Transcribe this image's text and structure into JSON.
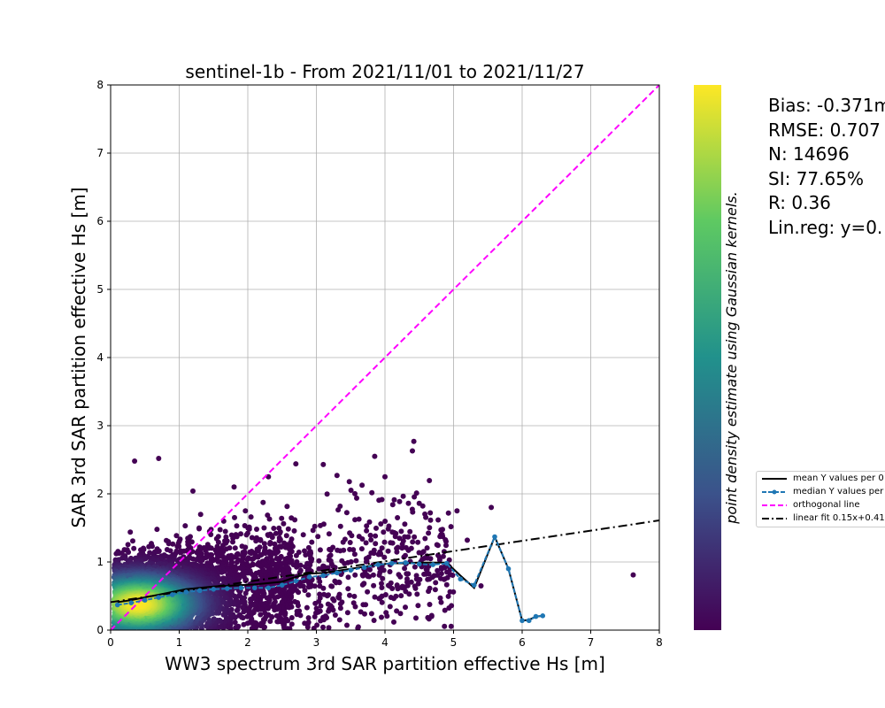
{
  "chart_data": {
    "type": "scatter",
    "title": "sentinel-1b - From 2021/11/01 to 2021/11/27",
    "xlabel": "WW3 spectrum 3rd SAR partition effective Hs [m]",
    "ylabel": "SAR 3rd SAR partition effective Hs [m]",
    "xlim": [
      0,
      8
    ],
    "ylim": [
      0,
      8
    ],
    "xticks": [
      "0",
      "1",
      "2",
      "3",
      "4",
      "5",
      "6",
      "7",
      "8"
    ],
    "yticks": [
      "0",
      "1",
      "2",
      "3",
      "4",
      "5",
      "6",
      "7",
      "8"
    ],
    "grid": true,
    "colorbar_label": "point density estimate using Gaussian kernels.",
    "colormap": [
      "#440154",
      "#3b528b",
      "#21918c",
      "#5ec962",
      "#fde725"
    ],
    "stats": [
      "Bias: -0.371m",
      "RMSE: 0.707",
      "N: 14696",
      "SI: 77.65%",
      "R: 0.36",
      "Lin.reg: y=0."
    ],
    "legend": {
      "placement": "right",
      "entries": [
        "mean Y values per 0",
        "median Y values per",
        "orthogonal line",
        "linear fit 0.15x+0.41"
      ]
    },
    "series": [
      {
        "name": "mean Y values per 0",
        "color": "#000000",
        "x": [
          0.1,
          0.3,
          0.5,
          0.7,
          0.9,
          1.1,
          1.3,
          1.5,
          1.7,
          1.9,
          2.1,
          2.3,
          2.5,
          2.7,
          2.9,
          3.1,
          3.3,
          3.5,
          3.7,
          3.9,
          4.1,
          4.3,
          4.5,
          4.7,
          4.9,
          5.1,
          5.3,
          5.6,
          5.8,
          6.0,
          6.1,
          6.2,
          6.3
        ],
        "y": [
          0.41,
          0.44,
          0.48,
          0.52,
          0.56,
          0.6,
          0.62,
          0.64,
          0.65,
          0.66,
          0.67,
          0.69,
          0.71,
          0.78,
          0.83,
          0.84,
          0.87,
          0.9,
          0.93,
          0.96,
          0.98,
          0.98,
          0.99,
          0.99,
          0.99,
          0.8,
          0.62,
          1.37,
          0.9,
          0.14,
          0.15,
          0.2,
          0.21
        ]
      },
      {
        "name": "median Y values per",
        "color": "#1f77b4",
        "x": [
          0.1,
          0.3,
          0.5,
          0.7,
          0.9,
          1.1,
          1.3,
          1.5,
          1.7,
          1.9,
          2.1,
          2.3,
          2.5,
          2.7,
          2.9,
          3.1,
          3.3,
          3.5,
          3.7,
          3.9,
          4.1,
          4.3,
          4.5,
          4.7,
          4.9,
          5.1,
          5.3,
          5.6,
          5.8,
          6.0,
          6.1,
          6.2,
          6.3
        ],
        "y": [
          0.37,
          0.4,
          0.44,
          0.48,
          0.52,
          0.56,
          0.58,
          0.6,
          0.61,
          0.62,
          0.62,
          0.62,
          0.66,
          0.72,
          0.78,
          0.8,
          0.84,
          0.88,
          0.92,
          0.96,
          0.98,
          0.99,
          0.97,
          0.96,
          0.98,
          0.75,
          0.66,
          1.37,
          0.9,
          0.14,
          0.14,
          0.2,
          0.21
        ]
      }
    ],
    "orthogonal_line": {
      "name": "orthogonal line",
      "color": "#ff00ff",
      "x": [
        0,
        8
      ],
      "y": [
        0,
        8
      ]
    },
    "linear_fit": {
      "name": "linear fit 0.15x+0.41",
      "color": "#000000",
      "slope": 0.15,
      "intercept": 0.41
    },
    "outliers": {
      "x": [
        0.35,
        0.7,
        1.2,
        1.8,
        2.3,
        2.7,
        3.1,
        3.3,
        3.85,
        4.0,
        4.4,
        4.42,
        5.05,
        5.2,
        5.4,
        5.55,
        7.62
      ],
      "y": [
        2.48,
        2.52,
        2.04,
        2.1,
        2.25,
        2.44,
        2.43,
        2.27,
        2.55,
        2.25,
        2.63,
        2.77,
        1.75,
        1.32,
        0.65,
        1.8,
        0.81
      ]
    },
    "scatter_generator": {
      "n_points": 4200,
      "seed": 7
    }
  }
}
